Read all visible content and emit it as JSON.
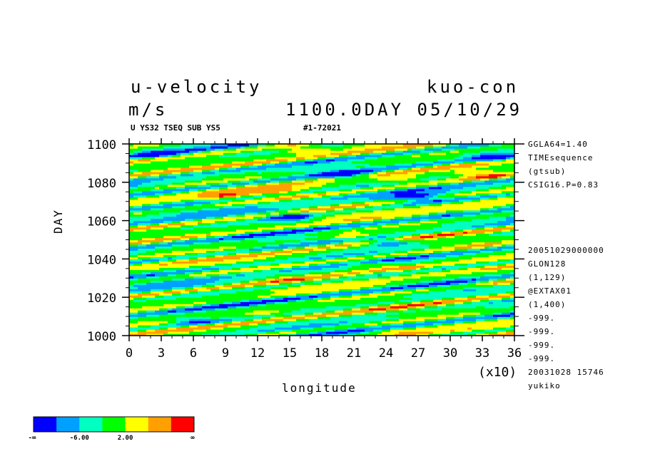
{
  "title_left": "u-velocity",
  "title_right": "kuo-con",
  "units": "m/s",
  "time_label": "1100.0DAY 05/10/29",
  "subtitle": "U YS32 TSEQ SUB YS5",
  "run_id": "#1-72021",
  "side_top": [
    "GGLA64=1.40",
    "TIMEsequence",
    "(gtsub)",
    "CSIG16.P=0.83"
  ],
  "side_bottom": [
    "20051029000000",
    "GLON128",
    "(1,129)",
    "@EXTAX01",
    "(1,400)",
    "-999.",
    "-999.",
    "-999.",
    "-999.",
    "20031028  15746",
    "yukiko"
  ],
  "x_multiplier": "(x10)",
  "colorbar": {
    "colors": [
      "#0000ff",
      "#00a0ff",
      "#00ffc0",
      "#00ff00",
      "#ffff00",
      "#ffa000",
      "#ff0000"
    ],
    "labels": [
      "-∞",
      "-6.00",
      "2.00",
      "∞"
    ]
  },
  "chart_data": {
    "type": "heatmap",
    "title": "u-velocity",
    "xlabel": "longitude",
    "ylabel": "DAY",
    "xlim": [
      0,
      36
    ],
    "ylim": [
      1000,
      1100
    ],
    "x_ticks": [
      "0",
      "3",
      "6",
      "9",
      "12",
      "15",
      "18",
      "21",
      "24",
      "27",
      "30",
      "33",
      "36"
    ],
    "y_ticks": [
      "1000",
      "1020",
      "1040",
      "1060",
      "1080",
      "1100"
    ],
    "features": [
      {
        "x": 3,
        "y": 1095,
        "u": -7
      },
      {
        "x": 16,
        "y": 1097,
        "u": 12
      },
      {
        "x": 34,
        "y": 1093,
        "u": -7
      },
      {
        "x": 13,
        "y": 1091,
        "u": 6
      },
      {
        "x": 20,
        "y": 1084,
        "u": -8
      },
      {
        "x": 25,
        "y": 1082,
        "u": 11
      },
      {
        "x": 33,
        "y": 1084,
        "u": 11
      },
      {
        "x": 9,
        "y": 1073,
        "u": 11
      },
      {
        "x": 14,
        "y": 1075,
        "u": 10
      },
      {
        "x": 27,
        "y": 1072,
        "u": -8
      },
      {
        "x": 33,
        "y": 1066,
        "u": 10
      },
      {
        "x": 15,
        "y": 1062,
        "u": -9
      },
      {
        "x": 21,
        "y": 1052,
        "u": 11
      },
      {
        "x": 24,
        "y": 1049,
        "u": -9
      },
      {
        "x": 33,
        "y": 1047,
        "u": 8
      },
      {
        "x": 22,
        "y": 1037,
        "u": 11
      },
      {
        "x": 26,
        "y": 1035,
        "u": 10
      },
      {
        "x": 35,
        "y": 1028,
        "u": 11
      },
      {
        "x": 15,
        "y": 1030,
        "u": 7
      },
      {
        "x": 13,
        "y": 1012,
        "u": 11
      },
      {
        "x": 6,
        "y": 1008,
        "u": -6
      },
      {
        "x": 25,
        "y": 1002,
        "u": 9
      }
    ]
  }
}
